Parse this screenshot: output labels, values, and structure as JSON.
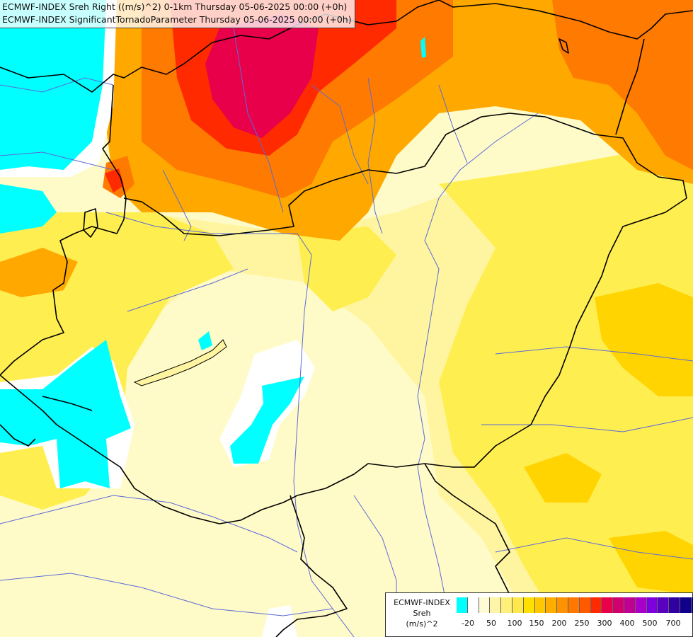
{
  "titles": {
    "line1": "ECMWF-INDEX Sreh Right ((m/s)^2) 0-1km Thursday 05-06-2025 00:00 (+0h)",
    "line2": "ECMWF-INDEX SignificantTornadoParameter Thursday 05-06-2025 00:00 (+0h)"
  },
  "legend": {
    "title1": "ECMWF-INDEX",
    "title2": "Sreh",
    "title3": "(m/s)^2",
    "colors": [
      "#00ffff",
      "#ffffff",
      "#fffbd5",
      "#fff5a8",
      "#fff07a",
      "#ffe94a",
      "#ffe000",
      "#ffc800",
      "#ffae00",
      "#ff9200",
      "#ff7800",
      "#ff5a00",
      "#ff2a00",
      "#e8004a",
      "#d2006e",
      "#bf0092",
      "#a800c8",
      "#7e00e0",
      "#5a00c0",
      "#3000a0",
      "#10008a",
      "#000078"
    ],
    "ticks": [
      "-20",
      "50",
      "100",
      "150",
      "200",
      "250",
      "300",
      "400",
      "500",
      "700"
    ]
  },
  "map": {
    "colors": {
      "cyan": "#00ffff",
      "white": "#ffffff",
      "pale": "#fffbc8",
      "lightyellow": "#fff5a0",
      "yellow": "#ffee50",
      "gold": "#ffd400",
      "orange": "#ffa800",
      "darkorange": "#ff7a00",
      "red": "#ff2a00",
      "crimson": "#e8004a",
      "border": "#000000",
      "river": "#5a6ad8"
    }
  }
}
